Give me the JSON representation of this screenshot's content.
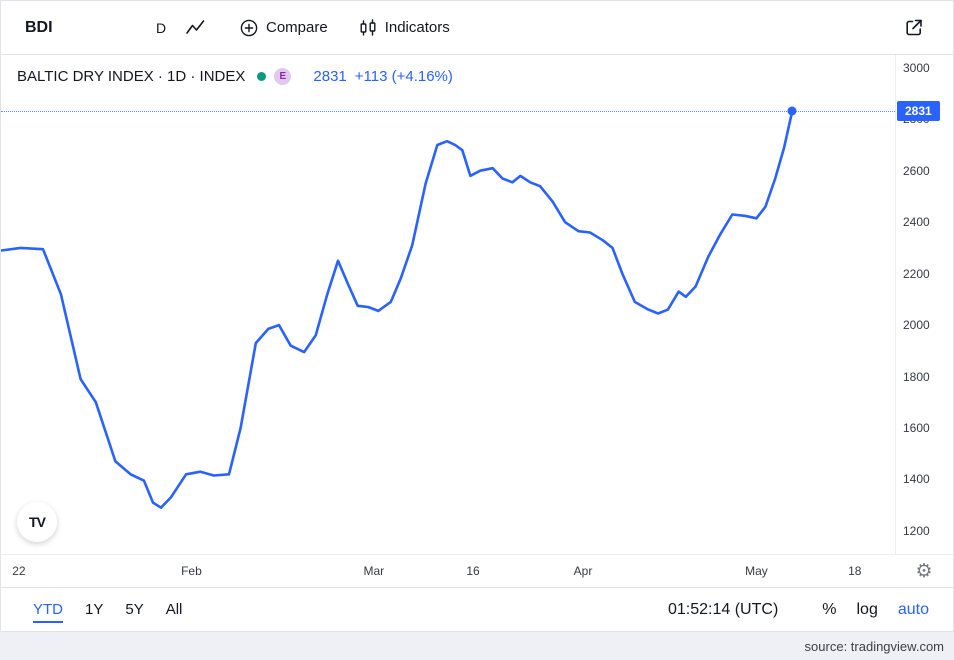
{
  "toolbar": {
    "symbol": "BDI",
    "interval": "D",
    "compare_label": "Compare",
    "indicators_label": "Indicators"
  },
  "legend": {
    "title": "BALTIC DRY INDEX · 1D · INDEX",
    "badge": "E",
    "price": "2831",
    "change": "+113 (+4.16%)"
  },
  "price_axis": {
    "last_price_label": "2831"
  },
  "logo_text": "TV",
  "gear_glyph": "⚙",
  "bottom_bar": {
    "ranges": [
      "YTD",
      "1Y",
      "5Y",
      "All"
    ],
    "active_range": "YTD",
    "clock": "01:52:14 (UTC)",
    "percent_label": "%",
    "log_label": "log",
    "auto_label": "auto"
  },
  "footer": {
    "source": "source: tradingview.com"
  },
  "colors": {
    "accent": "#2962ff",
    "line": "#2962ff",
    "green_dot": "#089981",
    "badge_bg": "#e2c7ee",
    "badge_fg": "#8e24aa"
  },
  "chart_data": {
    "type": "line",
    "title": "BALTIC DRY INDEX · 1D · INDEX",
    "xlabel": "",
    "ylabel": "",
    "ylim": [
      1110,
      3050
    ],
    "grid": false,
    "legend_position": "top-left",
    "last_value": 2831,
    "y_ticks": [
      1200,
      1400,
      1600,
      1800,
      2000,
      2200,
      2400,
      2600,
      2800,
      3000
    ],
    "x_ticks": [
      {
        "label": "22",
        "pos": 0.02
      },
      {
        "label": "Feb",
        "pos": 0.213
      },
      {
        "label": "Mar",
        "pos": 0.417
      },
      {
        "label": "16",
        "pos": 0.528
      },
      {
        "label": "Apr",
        "pos": 0.651
      },
      {
        "label": "May",
        "pos": 0.845
      },
      {
        "label": "18",
        "pos": 0.955
      }
    ],
    "points": [
      [
        0.0,
        2290
      ],
      [
        0.022,
        2300
      ],
      [
        0.047,
        2295
      ],
      [
        0.067,
        2120
      ],
      [
        0.089,
        1790
      ],
      [
        0.106,
        1700
      ],
      [
        0.128,
        1470
      ],
      [
        0.145,
        1420
      ],
      [
        0.16,
        1395
      ],
      [
        0.17,
        1310
      ],
      [
        0.179,
        1290
      ],
      [
        0.19,
        1330
      ],
      [
        0.207,
        1420
      ],
      [
        0.223,
        1430
      ],
      [
        0.238,
        1415
      ],
      [
        0.255,
        1420
      ],
      [
        0.268,
        1600
      ],
      [
        0.285,
        1930
      ],
      [
        0.299,
        1985
      ],
      [
        0.311,
        2000
      ],
      [
        0.324,
        1920
      ],
      [
        0.339,
        1895
      ],
      [
        0.352,
        1960
      ],
      [
        0.365,
        2120
      ],
      [
        0.377,
        2250
      ],
      [
        0.388,
        2160
      ],
      [
        0.399,
        2075
      ],
      [
        0.411,
        2070
      ],
      [
        0.422,
        2055
      ],
      [
        0.436,
        2090
      ],
      [
        0.447,
        2180
      ],
      [
        0.46,
        2310
      ],
      [
        0.475,
        2550
      ],
      [
        0.488,
        2700
      ],
      [
        0.499,
        2715
      ],
      [
        0.508,
        2700
      ],
      [
        0.516,
        2680
      ],
      [
        0.525,
        2580
      ],
      [
        0.536,
        2600
      ],
      [
        0.55,
        2610
      ],
      [
        0.561,
        2570
      ],
      [
        0.572,
        2555
      ],
      [
        0.581,
        2580
      ],
      [
        0.592,
        2555
      ],
      [
        0.603,
        2540
      ],
      [
        0.617,
        2480
      ],
      [
        0.631,
        2400
      ],
      [
        0.646,
        2365
      ],
      [
        0.659,
        2360
      ],
      [
        0.673,
        2330
      ],
      [
        0.684,
        2300
      ],
      [
        0.695,
        2200
      ],
      [
        0.709,
        2090
      ],
      [
        0.724,
        2060
      ],
      [
        0.735,
        2045
      ],
      [
        0.746,
        2060
      ],
      [
        0.758,
        2130
      ],
      [
        0.766,
        2110
      ],
      [
        0.777,
        2150
      ],
      [
        0.791,
        2265
      ],
      [
        0.804,
        2350
      ],
      [
        0.818,
        2430
      ],
      [
        0.832,
        2425
      ],
      [
        0.845,
        2415
      ],
      [
        0.855,
        2460
      ],
      [
        0.866,
        2570
      ],
      [
        0.876,
        2690
      ],
      [
        0.885,
        2831
      ]
    ]
  }
}
